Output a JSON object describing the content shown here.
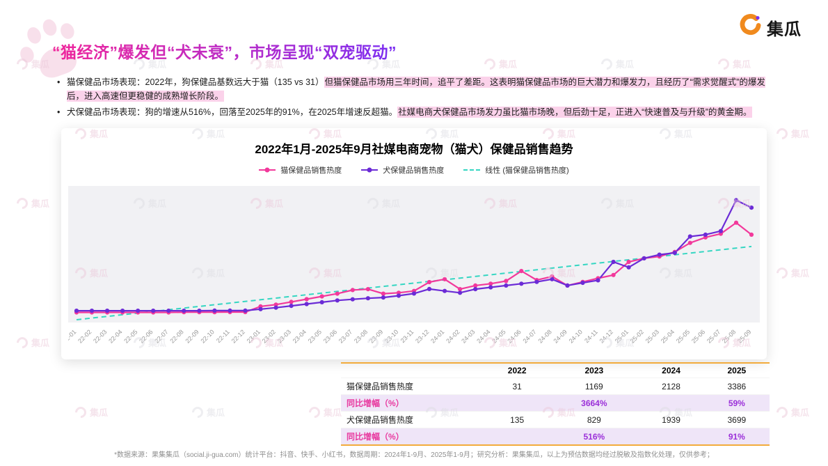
{
  "logo": {
    "text": "集瓜"
  },
  "watermark": {
    "text": "集瓜"
  },
  "title": {
    "text": "“猫经济”爆发但“犬未衰”，市场呈现“双宠驱动”"
  },
  "bullets": [
    {
      "pre": "猫保健品市场表现：2022年，狗保健品基数远大于猫（135 vs 31）",
      "highlight": "但猫保健品市场用三年时间，追平了差距。这表明猫保健品市场的巨大潜力和爆发力，且经历了“需求觉醒式”的爆发后，进入高速但更稳健的成熟增长阶段。"
    },
    {
      "pre": "犬保健品市场表现：狗的增速从516%，回落至2025年的91%，在2025年增速反超猫。",
      "highlight": "社媒电商犬保健品市场发力虽比猫市场晚，但后劲十足，正进入“快速普及与升级”的黄金期。"
    }
  ],
  "chart_data": {
    "type": "line",
    "title": "2022年1月-2025年9月社媒电商宠物（猫犬）保健品销售趋势",
    "x": [
      "22-01",
      "22-02",
      "22-03",
      "22-04",
      "22-05",
      "22-06",
      "22-07",
      "22-08",
      "22-09",
      "22-10",
      "22-11",
      "22-12",
      "23-01",
      "23-02",
      "23-03",
      "23-04",
      "23-05",
      "23-06",
      "23-07",
      "23-08",
      "23-09",
      "23-10",
      "23-11",
      "23-12",
      "24-01",
      "24-02",
      "24-03",
      "24-04",
      "24-05",
      "24-06",
      "24-07",
      "24-08",
      "24-09",
      "24-10",
      "24-11",
      "24-12",
      "25-01",
      "25-02",
      "25-03",
      "25-04",
      "25-05",
      "25-06",
      "25-07",
      "25-08",
      "25-09"
    ],
    "series": [
      {
        "name": "猫保健品销售热度",
        "color": "#F2399B",
        "values": [
          2,
          2,
          2,
          2,
          2,
          2,
          2,
          3,
          3,
          3,
          4,
          4,
          35,
          45,
          60,
          75,
          90,
          105,
          125,
          130,
          105,
          110,
          120,
          169,
          185,
          130,
          150,
          160,
          175,
          230,
          180,
          200,
          150,
          170,
          190,
          208,
          280,
          300,
          310,
          335,
          385,
          415,
          435,
          496,
          430
        ]
      },
      {
        "name": "犬保健品销售热度",
        "color": "#6B2BD6",
        "values": [
          11,
          11,
          11,
          11,
          11,
          11,
          11,
          11,
          11,
          12,
          12,
          12,
          20,
          28,
          38,
          48,
          58,
          68,
          74,
          80,
          84,
          94,
          106,
          131,
          120,
          110,
          130,
          140,
          150,
          160,
          170,
          185,
          150,
          165,
          179,
          280,
          250,
          300,
          320,
          330,
          420,
          430,
          450,
          620,
          579
        ]
      }
    ],
    "trend": {
      "name": "线性 (猫保健品销售热度)",
      "color": "#35D6C2",
      "style": "dashed",
      "basis_series": "猫保健品销售热度"
    },
    "ylim": [
      0,
      660
    ],
    "grid": false,
    "legend_position": "top",
    "plot_background": "#f1f1f4"
  },
  "table": {
    "columns": [
      "2022",
      "2023",
      "2024",
      "2025"
    ],
    "rows": [
      {
        "label": "猫保健品销售热度",
        "values": [
          "31",
          "1169",
          "2128",
          "3386"
        ],
        "highlight": false
      },
      {
        "label": "同比增幅（%）",
        "values": [
          "",
          "3664%",
          "",
          "59%"
        ],
        "highlight": true
      },
      {
        "label": "犬保健品销售热度",
        "values": [
          "135",
          "829",
          "1939",
          "3699"
        ],
        "highlight": false
      },
      {
        "label": "同比增幅（%）",
        "values": [
          "",
          "516%",
          "",
          "91%"
        ],
        "highlight": true
      }
    ]
  },
  "footer": {
    "text": "*数据来源：果集集瓜（social.ji-gua.com）统计平台：抖音、快手、小红书，数据周期：2024年1-9月、2025年1-9月；研究分析：果集集瓜，以上为预估数据均经过脱敏及指数化处理，仅供参考；"
  }
}
